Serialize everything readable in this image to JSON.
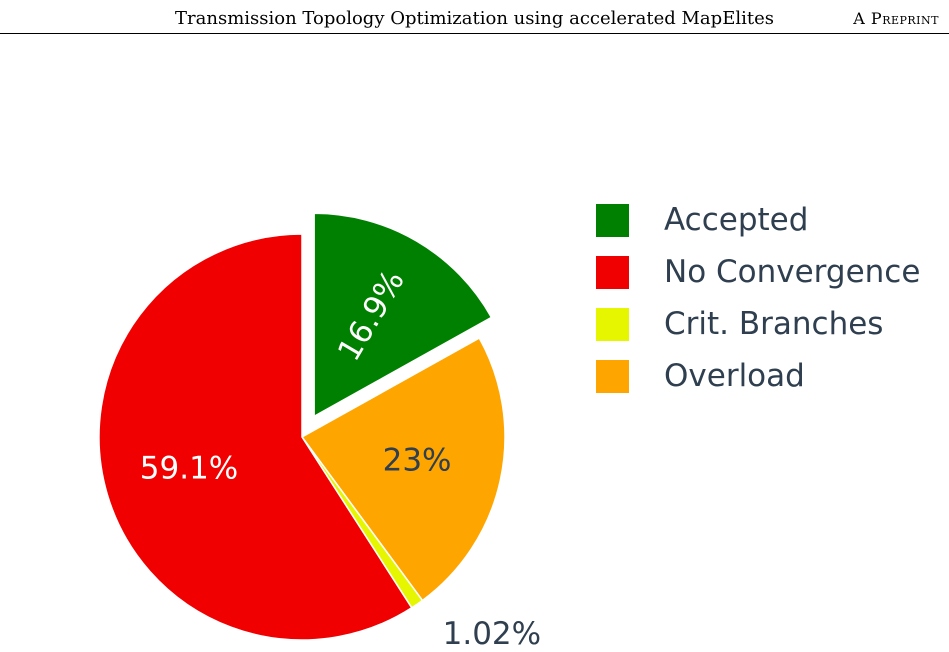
{
  "header": {
    "title": "Transmission Topology Optimization using accelerated MapElites",
    "preprint_label": "A Preprint"
  },
  "chart_data": {
    "type": "pie",
    "title": "",
    "slices": [
      {
        "label": "Accepted",
        "value": 16.9,
        "display": "16.9%",
        "color": "#008000",
        "exploded": true
      },
      {
        "label": "Overload",
        "value": 23.0,
        "display": "23%",
        "color": "#ffa500",
        "exploded": false
      },
      {
        "label": "Crit. Branches",
        "value": 1.02,
        "display": "1.02%",
        "color": "#e6f500",
        "exploded": false
      },
      {
        "label": "No Convergence",
        "value": 59.1,
        "display": "59.1%",
        "color": "#f00000",
        "exploded": false
      }
    ],
    "legend": {
      "placement": "right",
      "entries": [
        {
          "label": "Accepted",
          "color": "#008000"
        },
        {
          "label": "No Convergence",
          "color": "#f00000"
        },
        {
          "label": "Crit. Branches",
          "color": "#e6f500"
        },
        {
          "label": "Overload",
          "color": "#ffa500"
        }
      ]
    }
  }
}
